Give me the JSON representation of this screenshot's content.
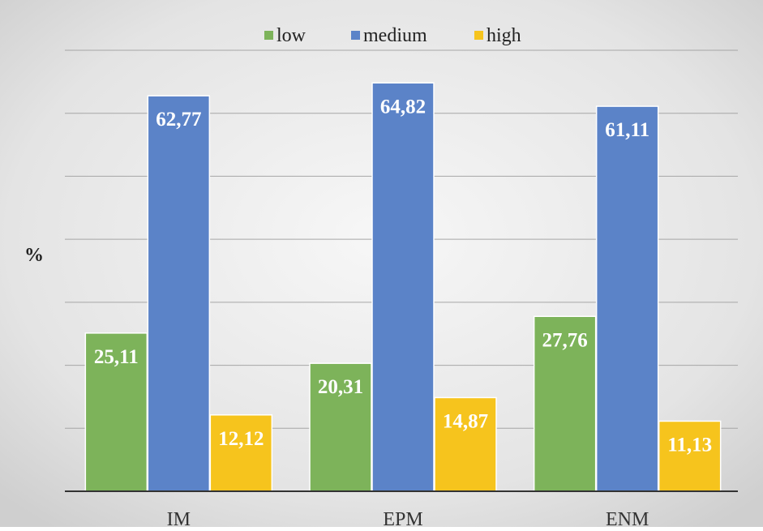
{
  "chart_data": {
    "type": "bar",
    "title": "",
    "xlabel": "",
    "ylabel": "%",
    "categories": [
      "IM",
      "EPM",
      "ENM"
    ],
    "series": [
      {
        "name": "low",
        "values": [
          25.11,
          20.31,
          27.76
        ],
        "labels": [
          "25,11",
          "20,31",
          "27,76"
        ],
        "color": "#7db35a"
      },
      {
        "name": "medium",
        "values": [
          62.77,
          64.82,
          61.11
        ],
        "labels": [
          "62,77",
          "64,82",
          "61,11"
        ],
        "color": "#5b83c8"
      },
      {
        "name": "high",
        "values": [
          12.12,
          14.87,
          11.13
        ],
        "labels": [
          "12,12",
          "14,87",
          "11,13"
        ],
        "color": "#f6c41d"
      }
    ],
    "ylim": [
      0,
      70
    ],
    "grid": true,
    "legend_position": "top",
    "background": "#dcdcdc",
    "gridline_color": "#a6a6a6",
    "axis_color": "#333333"
  }
}
